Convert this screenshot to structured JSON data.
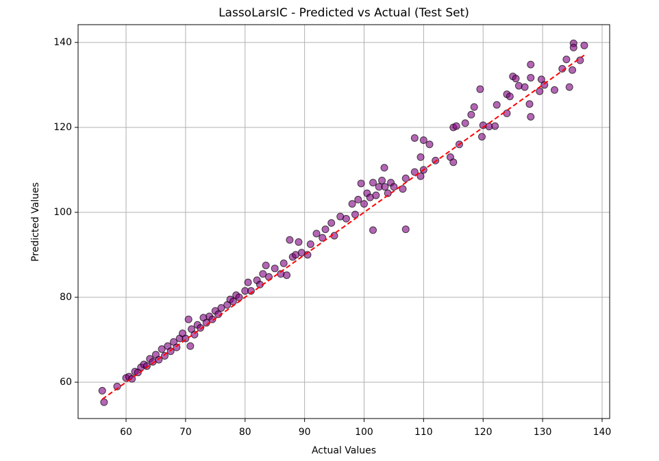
{
  "chart_data": {
    "type": "scatter",
    "title": "LassoLarsIC - Predicted vs Actual (Test Set)",
    "x_label": "Actual Values",
    "y_label": "Predicted Values",
    "x": [
      56,
      56.3,
      58.5,
      60,
      60.5,
      61,
      61.5,
      62,
      62.5,
      63,
      63.5,
      64,
      64.5,
      65,
      65.5,
      66,
      66.5,
      67,
      67.5,
      68,
      68.5,
      69,
      69.5,
      70,
      70.5,
      70.8,
      71,
      71.5,
      72,
      72.5,
      73,
      73.5,
      74,
      74.5,
      75,
      75.5,
      76,
      77,
      77.5,
      78,
      78.5,
      79,
      80,
      80.5,
      81,
      82,
      82.5,
      83,
      83.5,
      84,
      85,
      86,
      86.5,
      87,
      87.5,
      88,
      88.5,
      89,
      89.5,
      90.5,
      91,
      92,
      93,
      93.5,
      94.5,
      95,
      96,
      97,
      98,
      98.5,
      99,
      99.5,
      100,
      100.5,
      101,
      101.5,
      101.5,
      102,
      102.5,
      103,
      103.4,
      103.5,
      104,
      104.5,
      105,
      106.5,
      107,
      107,
      108.5,
      108.5,
      109.5,
      109.5,
      110,
      110,
      111,
      112,
      114.5,
      115,
      115,
      115.5,
      116,
      117,
      118,
      118.5,
      119.5,
      119.8,
      120,
      121,
      122,
      122.3,
      124,
      124,
      124.5,
      125,
      125.5,
      126,
      127,
      127.8,
      128,
      128,
      128,
      129.5,
      129.8,
      130.3,
      132,
      133.3,
      134,
      134.5,
      135,
      135.2,
      135.2,
      136.3,
      137
    ],
    "values": [
      58,
      55.3,
      59,
      61,
      61.3,
      60.8,
      62.5,
      62.3,
      63.5,
      64.2,
      63.8,
      65.5,
      64.8,
      66.5,
      65.3,
      67.8,
      66.2,
      68.5,
      67.3,
      69.5,
      68.2,
      70.3,
      71.5,
      70.3,
      74.8,
      68.5,
      72.5,
      71.2,
      73.5,
      72.8,
      75.2,
      74,
      75.5,
      74.8,
      76.8,
      76,
      77.5,
      78.2,
      79.5,
      79,
      80.5,
      80,
      81.5,
      83.5,
      81.5,
      84,
      83,
      85.5,
      87.5,
      84.8,
      86.8,
      85.5,
      88,
      85.2,
      93.5,
      89.5,
      90,
      93,
      90.5,
      90,
      92.5,
      95,
      94,
      96,
      97.5,
      94.5,
      99,
      98.5,
      102,
      99.5,
      103,
      106.8,
      102,
      104.5,
      103.5,
      107,
      95.8,
      104,
      106,
      107.5,
      110.5,
      106,
      104.5,
      107,
      106,
      105.5,
      108,
      96,
      109.5,
      117.5,
      108.5,
      113,
      110,
      117,
      116,
      112.2,
      113,
      120,
      111.8,
      120.3,
      116,
      121,
      123,
      124.8,
      129,
      117.8,
      120.5,
      120.2,
      120.3,
      125.3,
      127.8,
      123.3,
      127.3,
      132,
      131.5,
      129.8,
      129.5,
      125.5,
      122.5,
      134.8,
      131.7,
      128.5,
      131.3,
      130,
      128.8,
      133.8,
      136,
      129.5,
      133.5,
      139.8,
      138.8,
      135.8,
      139.3
    ],
    "color": "#800080",
    "reference_line": {
      "x": [
        56,
        137
      ],
      "values": [
        56,
        137
      ],
      "color": "#ff0000"
    },
    "xlim": [
      51.94,
      141.27
    ],
    "ylim": [
      51.45,
      144.19
    ],
    "xticks": [
      60,
      70,
      80,
      90,
      100,
      110,
      120,
      130,
      140
    ],
    "yticks": [
      60,
      80,
      100,
      120,
      140
    ],
    "grid": true
  }
}
